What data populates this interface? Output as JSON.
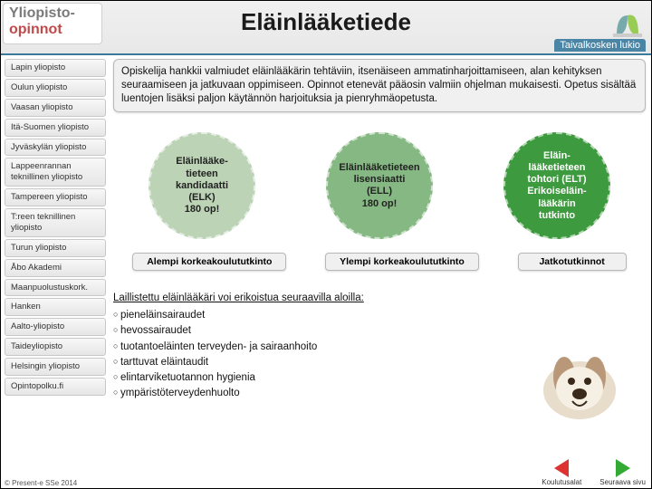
{
  "logo": {
    "line1": "Yliopisto-",
    "line2": "opinnot"
  },
  "page_title": "Eläinlääketiede",
  "header_right_label": "Taivalkosken lukio",
  "sidebar": {
    "items": [
      "Lapin yliopisto",
      "Oulun yliopisto",
      "Vaasan yliopisto",
      "Itä-Suomen yliopisto",
      "Jyväskylän yliopisto",
      "Lappeenrannan teknillinen yliopisto",
      "Tampereen yliopisto",
      "T:reen teknillinen yliopisto",
      "Turun yliopisto",
      "Åbo Akademi",
      "Maanpuolustuskork.",
      "Hanken",
      "Aalto-yliopisto",
      "Taideyliopisto",
      "Helsingin yliopisto",
      "Opintopolku.fi"
    ]
  },
  "intro": "Opiskelija hankkii valmiudet eläinlääkärin tehtäviin, itsenäiseen ammatinharjoittamiseen, alan kehityksen seuraamiseen ja jatkuvaan oppimiseen. Opinnot etenevät pääosin valmiin ohjelman mukaisesti. Opetus sisältää luentojen lisäksi paljon käytännön harjoituksia ja pienryhmäopetusta.",
  "circles": [
    {
      "text": "Eläinlääke-\ntieteen\nkandidaatti\n(ELK)\n180 op!",
      "color": "#bcd3b6",
      "fg": "#222222"
    },
    {
      "text": "Eläinlääketieteen\nlisensiaatti\n(ELL)\n180 op!",
      "color": "#86b883",
      "fg": "#222222"
    },
    {
      "text": "Eläin-\nlääketieteen\ntohtori (ELT)\nErikoiseläin-\nlääkärin\ntutkinto",
      "color": "#3e9a3e",
      "fg": "#ffffff"
    }
  ],
  "degree_labels": [
    "Alempi korkeakoulututkinto",
    "Ylempi korkeakoulututkinto",
    "Jatkotutkinnot"
  ],
  "spec": {
    "title": "Laillistettu eläinlääkäri voi erikoistua seuraavilla aloilla:",
    "items": [
      "pieneläinsairaudet",
      "hevossairaudet",
      "tuotantoeläinten terveyden- ja sairaanhoito",
      "tarttuvat eläintaudit",
      "elintarviketuotannon hygienia",
      "ympäristöterveydenhuolto"
    ]
  },
  "nav": {
    "prev": "Koulutusalat",
    "next": "Seuraava sivu"
  },
  "footer": "© Present-e SSe 2014"
}
